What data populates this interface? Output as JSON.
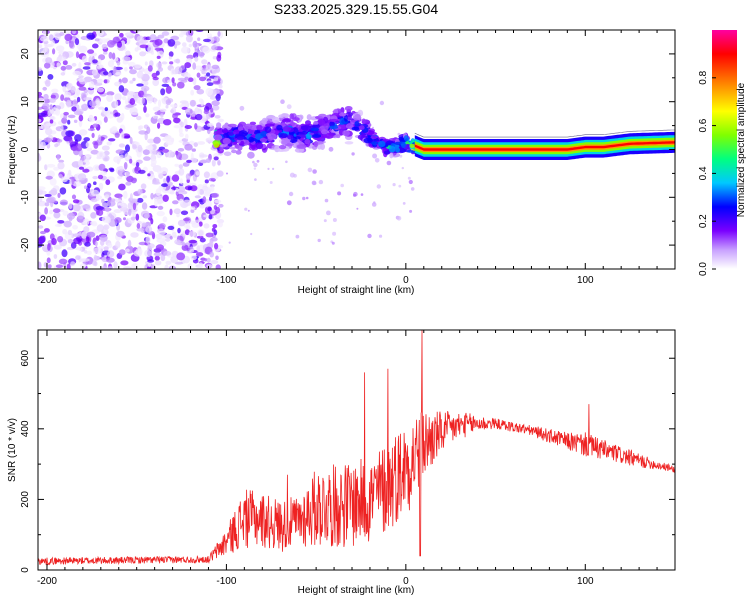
{
  "title": "S233.2025.329.15.55.G04",
  "chart_data": [
    {
      "type": "heatmap",
      "name": "spectrogram",
      "xlabel": "Height of straight line (km)",
      "ylabel": "Frequency (Hz)",
      "xlim": [
        -205,
        150
      ],
      "ylim": [
        -25,
        25
      ],
      "xticks": [
        -200,
        -100,
        0,
        100
      ],
      "yticks": [
        -20,
        -10,
        0,
        10,
        20
      ],
      "colorbar": {
        "label": "Normalized spectral amplitude",
        "range": [
          0,
          1
        ],
        "ticks": [
          "0.0",
          "0.2",
          "0.4",
          "0.6",
          "0.8"
        ],
        "tick_values": [
          0,
          0.2,
          0.4,
          0.6,
          0.8
        ],
        "colors": [
          "#ffffff",
          "#c8a0ff",
          "#7a00ff",
          "#0000ff",
          "#00c8ff",
          "#00ff80",
          "#80ff00",
          "#ffff00",
          "#ff8000",
          "#ff0000",
          "#ff00a0"
        ]
      },
      "noise_region": {
        "x": [
          -205,
          -103
        ],
        "freq": [
          -25,
          25
        ],
        "amplitude": 0.15
      },
      "signal_track": [
        {
          "x": -105,
          "f": 2.0,
          "a": 0.3
        },
        {
          "x": -95,
          "f": 3.0,
          "a": 0.35
        },
        {
          "x": -85,
          "f": 2.5,
          "a": 0.35
        },
        {
          "x": -75,
          "f": 3.0,
          "a": 0.3
        },
        {
          "x": -65,
          "f": 4.0,
          "a": 0.35
        },
        {
          "x": -55,
          "f": 3.0,
          "a": 0.35
        },
        {
          "x": -45,
          "f": 4.5,
          "a": 0.3
        },
        {
          "x": -35,
          "f": 6.0,
          "a": 0.35
        },
        {
          "x": -28,
          "f": 5.0,
          "a": 0.3
        },
        {
          "x": -20,
          "f": 2.5,
          "a": 0.35
        },
        {
          "x": -12,
          "f": 0.5,
          "a": 0.4
        },
        {
          "x": -5,
          "f": 0.5,
          "a": 0.45
        },
        {
          "x": 0,
          "f": 1.5,
          "a": 0.5
        },
        {
          "x": 5,
          "f": 0.8,
          "a": 0.7
        },
        {
          "x": 10,
          "f": 0.0,
          "a": 0.85
        },
        {
          "x": 50,
          "f": 0.0,
          "a": 0.85
        },
        {
          "x": 90,
          "f": 0.0,
          "a": 0.8
        },
        {
          "x": 100,
          "f": 0.5,
          "a": 0.75
        },
        {
          "x": 110,
          "f": 0.5,
          "a": 0.8
        },
        {
          "x": 125,
          "f": 1.2,
          "a": 0.85
        },
        {
          "x": 150,
          "f": 1.5,
          "a": 0.9
        }
      ]
    },
    {
      "type": "line",
      "name": "snr",
      "xlabel": "Height of straight line (km)",
      "ylabel": "SNR (10 * v/v)",
      "xlim": [
        -205,
        150
      ],
      "ylim": [
        0,
        680
      ],
      "xticks": [
        -200,
        -100,
        0,
        100
      ],
      "yticks": [
        0,
        200,
        400,
        600
      ],
      "series_color": "#ee2222",
      "envelope": {
        "x": [
          -205,
          -110,
          -100,
          -90,
          -80,
          -70,
          -60,
          -50,
          -40,
          -30,
          -20,
          -10,
          -5,
          0,
          5,
          10,
          20,
          30,
          40,
          50,
          60,
          70,
          80,
          90,
          100,
          110,
          120,
          130,
          140,
          150
        ],
        "base": [
          15,
          20,
          40,
          60,
          60,
          50,
          60,
          60,
          60,
          60,
          70,
          100,
          130,
          160,
          180,
          250,
          330,
          370,
          390,
          400,
          390,
          380,
          360,
          340,
          320,
          310,
          300,
          290,
          285,
          275
        ],
        "top": [
          35,
          40,
          120,
          230,
          220,
          200,
          210,
          290,
          300,
          310,
          320,
          370,
          400,
          420,
          450,
          460,
          450,
          450,
          440,
          430,
          420,
          410,
          400,
          390,
          390,
          370,
          350,
          330,
          310,
          295
        ]
      },
      "spikes": [
        {
          "x": -66,
          "y": 270
        },
        {
          "x": -23,
          "y": 560
        },
        {
          "x": -10,
          "y": 570
        },
        {
          "x": 9,
          "y": 680
        },
        {
          "x": 102,
          "y": 470
        }
      ]
    }
  ]
}
